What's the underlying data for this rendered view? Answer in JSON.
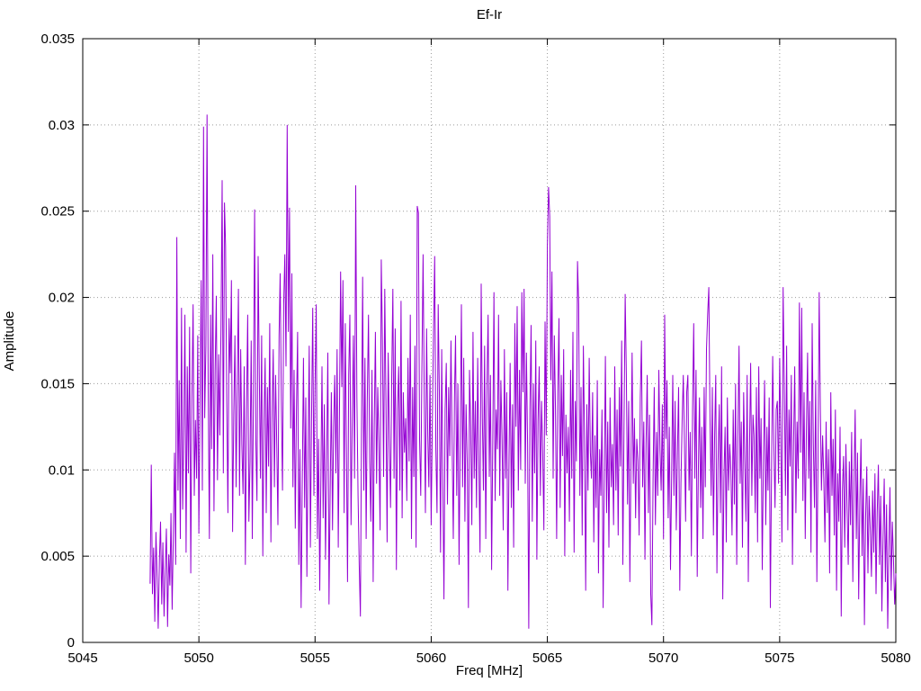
{
  "chart_data": {
    "type": "line",
    "title": "Ef-Ir",
    "xlabel": "Freq [MHz]",
    "ylabel": "Amplitude",
    "xlim": [
      5045,
      5080
    ],
    "ylim": [
      0,
      0.035
    ],
    "grid": true,
    "grid_color": "#9b9b9b",
    "axis_color": "#000000",
    "line_color": "#9400d3",
    "background_color": "#ffffff",
    "legend": "none",
    "xticks": [
      {
        "v": 5045,
        "label": "5045"
      },
      {
        "v": 5050,
        "label": "5050"
      },
      {
        "v": 5055,
        "label": "5055"
      },
      {
        "v": 5060,
        "label": "5060"
      },
      {
        "v": 5065,
        "label": "5065"
      },
      {
        "v": 5070,
        "label": "5070"
      },
      {
        "v": 5075,
        "label": "5075"
      },
      {
        "v": 5080,
        "label": "5080"
      }
    ],
    "yticks": [
      {
        "v": 0,
        "label": "0"
      },
      {
        "v": 0.005,
        "label": "0.005"
      },
      {
        "v": 0.01,
        "label": "0.01"
      },
      {
        "v": 0.015,
        "label": "0.015"
      },
      {
        "v": 0.02,
        "label": "0.02"
      },
      {
        "v": 0.025,
        "label": "0.025"
      },
      {
        "v": 0.03,
        "label": "0.03"
      },
      {
        "v": 0.035,
        "label": "0.035"
      }
    ],
    "x_start": 5047.9,
    "x_step": 0.05,
    "amplitude_unit": 0.0001,
    "amplitudes": [
      34,
      103,
      28,
      55,
      12,
      64,
      38,
      8,
      47,
      70,
      22,
      58,
      15,
      42,
      66,
      9,
      51,
      33,
      75,
      19,
      62,
      110,
      45,
      235,
      88,
      152,
      60,
      194,
      77,
      125,
      190,
      52,
      160,
      98,
      183,
      40,
      142,
      196,
      85,
      129,
      95,
      178,
      63,
      140,
      210,
      88,
      299,
      130,
      172,
      306,
      145,
      60,
      190,
      112,
      225,
      76,
      158,
      201,
      94,
      167,
      120,
      182,
      268,
      98,
      255,
      230,
      140,
      75,
      188,
      156,
      210,
      64,
      132,
      178,
      90,
      150,
      205,
      85,
      170,
      115,
      86,
      160,
      45,
      135,
      190,
      70,
      105,
      175,
      60,
      145,
      251,
      118,
      82,
      224,
      155,
      95,
      178,
      50,
      128,
      165,
      75,
      148,
      102,
      185,
      58,
      132,
      170,
      90,
      155,
      115,
      68,
      178,
      214,
      140,
      88,
      196,
      225,
      160,
      300,
      180,
      252,
      124,
      214,
      90,
      158,
      66,
      135,
      180,
      45,
      112,
      20,
      95,
      165,
      78,
      142,
      38,
      108,
      172,
      55,
      130,
      194,
      85,
      150,
      196,
      60,
      118,
      30,
      92,
      160,
      72,
      138,
      48,
      105,
      168,
      22,
      88,
      145,
      65,
      125,
      155,
      98,
      170,
      55,
      132,
      215,
      148,
      210,
      75,
      185,
      110,
      35,
      155,
      190,
      68,
      128,
      178,
      95,
      265,
      142,
      85,
      45,
      15,
      120,
      212,
      88,
      165,
      60,
      142,
      190,
      105,
      70,
      158,
      35,
      125,
      180,
      92,
      148,
      115,
      65,
      222,
      175,
      96,
      205,
      140,
      58,
      168,
      118,
      78,
      152,
      205,
      95,
      182,
      42,
      135,
      160,
      88,
      198,
      72,
      145,
      110,
      130,
      82,
      165,
      105,
      190,
      60,
      148,
      96,
      172,
      55,
      253,
      249,
      118,
      85,
      160,
      225,
      140,
      75,
      182,
      120,
      90,
      155,
      68,
      128,
      180,
      224,
      112,
      75,
      196,
      145,
      52,
      170,
      98,
      25,
      135,
      162,
      80,
      148,
      108,
      175,
      115,
      60,
      142,
      178,
      85,
      150,
      45,
      120,
      196,
      90,
      165,
      70,
      138,
      105,
      20,
      158,
      125,
      68,
      180,
      95,
      140,
      78,
      165,
      105,
      52,
      208,
      130,
      88,
      172,
      60,
      148,
      190,
      96,
      155,
      42,
      118,
      203,
      82,
      135,
      112,
      190,
      85,
      152,
      118,
      65,
      170,
      95,
      145,
      30,
      108,
      162,
      78,
      138,
      55,
      185,
      125,
      195,
      88,
      158,
      100,
      203,
      145,
      205,
      92,
      168,
      115,
      8,
      135,
      184,
      70,
      150,
      98,
      175,
      48,
      128,
      160,
      85,
      140,
      110,
      65,
      186,
      120,
      230,
      264,
      247,
      152,
      215,
      95,
      178,
      135,
      60,
      145,
      188,
      78,
      155,
      108,
      170,
      50,
      132,
      98,
      125,
      70,
      158,
      95,
      180,
      52,
      140,
      105,
      221,
      196,
      85,
      148,
      62,
      172,
      118,
      30,
      138,
      88,
      165,
      110,
      95,
      145,
      58,
      120,
      78,
      152,
      40,
      112,
      85,
      135,
      20,
      98,
      166,
      75,
      128,
      55,
      142,
      90,
      115,
      68,
      160,
      88,
      135,
      62,
      148,
      102,
      175,
      45,
      125,
      202,
      155,
      80,
      140,
      35,
      108,
      168,
      92,
      130,
      72,
      118,
      105,
      62,
      142,
      175,
      90,
      128,
      48,
      115,
      155,
      75,
      132,
      28,
      10,
      95,
      148,
      68,
      122,
      85,
      158,
      112,
      88,
      138,
      60,
      190,
      118,
      152,
      72,
      125,
      42,
      98,
      155,
      85,
      140,
      65,
      110,
      148,
      30,
      92,
      128,
      155,
      115,
      70,
      145,
      155,
      88,
      122,
      50,
      135,
      185,
      95,
      158,
      38,
      102,
      142,
      78,
      125,
      60,
      148,
      90,
      170,
      190,
      206,
      130,
      85,
      148,
      62,
      118,
      155,
      40,
      105,
      138,
      75,
      160,
      25,
      95,
      125,
      58,
      142,
      88,
      115,
      100,
      62,
      135,
      80,
      150,
      45,
      118,
      172,
      92,
      128,
      55,
      145,
      105,
      70,
      155,
      35,
      112,
      162,
      85,
      132,
      120,
      75,
      148,
      58,
      160,
      95,
      130,
      42,
      108,
      152,
      68,
      125,
      88,
      142,
      20,
      98,
      166,
      115,
      78,
      135,
      140,
      92,
      165,
      120,
      58,
      206,
      148,
      85,
      172,
      65,
      135,
      102,
      155,
      45,
      118,
      160,
      75,
      128,
      95,
      197,
      110,
      194,
      82,
      145,
      60,
      125,
      168,
      95,
      140,
      52,
      185,
      115,
      78,
      152,
      35,
      105,
      203,
      135,
      88,
      120,
      95,
      58,
      128,
      75,
      112,
      40,
      145,
      85,
      118,
      62,
      135,
      30,
      98,
      70,
      125,
      15,
      88,
      108,
      55,
      115,
      78,
      45,
      105,
      68,
      122,
      35,
      92,
      135,
      60,
      110,
      25,
      82,
      118,
      50,
      95,
      10,
      72,
      102,
      40,
      85,
      65,
      38,
      88,
      52,
      98,
      28,
      75,
      103,
      45,
      85,
      18,
      60,
      95,
      35,
      80,
      8,
      55,
      90,
      30,
      70,
      48,
      22,
      40
    ]
  }
}
